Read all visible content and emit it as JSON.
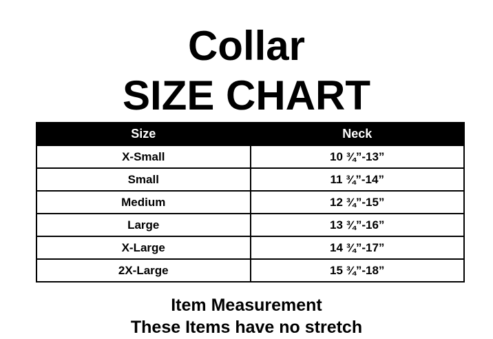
{
  "header": {
    "title_line1": "Collar",
    "title_line2": "SIZE CHART"
  },
  "table": {
    "columns": [
      "Size",
      "Neck"
    ],
    "rows": [
      {
        "size": "X-Small",
        "neck": "10 ¾”-13”"
      },
      {
        "size": "Small",
        "neck": "11 ¾”-14”"
      },
      {
        "size": "Medium",
        "neck": "12 ¾”-15”"
      },
      {
        "size": "Large",
        "neck": "13 ¾”-16”"
      },
      {
        "size": "X-Large",
        "neck": "14 ¾”-17”"
      },
      {
        "size": "2X-Large",
        "neck": "15 ¾”-18”"
      }
    ]
  },
  "footer": {
    "line1": "Item Measurement",
    "line2": "These Items have no stretch"
  },
  "colors": {
    "background": "#ffffff",
    "table_header_bg": "#000000",
    "table_header_text": "#ffffff",
    "body_text": "#000000",
    "border": "#000000"
  }
}
